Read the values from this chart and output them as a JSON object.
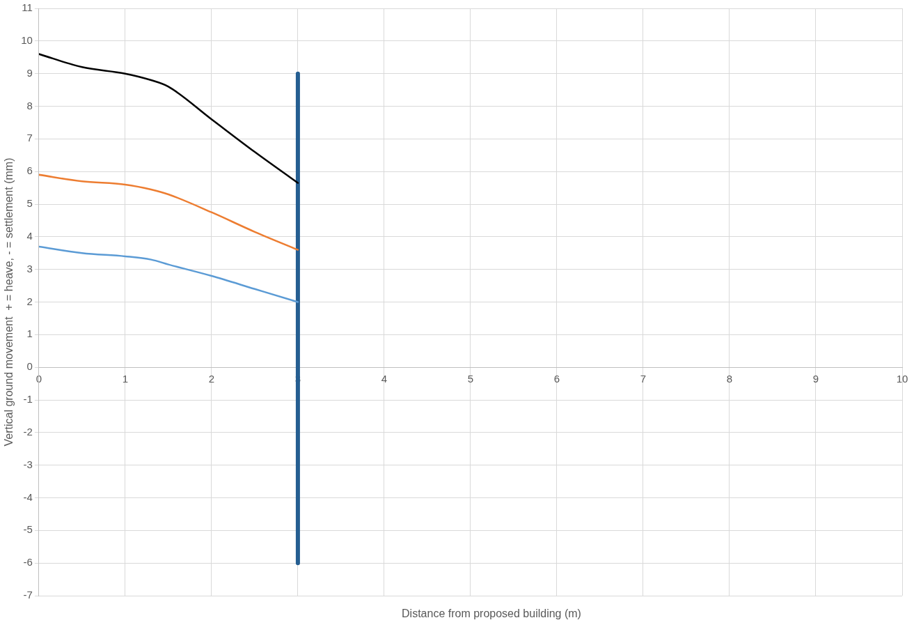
{
  "chart_data": {
    "type": "line",
    "xlabel": "Distance from proposed building (m)",
    "ylabel": "Vertical ground movement  + = heave, - = settlement (mm)",
    "xlim": [
      0,
      10
    ],
    "xticks": [
      0,
      1,
      2,
      3,
      4,
      5,
      6,
      7,
      8,
      9,
      10
    ],
    "ylim": [
      -7,
      11
    ],
    "yticks": [
      -7,
      -6,
      -5,
      -4,
      -3,
      -2,
      -1,
      0,
      1,
      2,
      3,
      4,
      5,
      6,
      7,
      8,
      9,
      10,
      11
    ],
    "grid": true,
    "legend": false,
    "marker": "none",
    "line_style": "solid",
    "series": [
      {
        "color": "#000000",
        "x": [
          0,
          0.5,
          1,
          1.3,
          1.5,
          2,
          2.5,
          3
        ],
        "values": [
          9.6,
          9.2,
          9.0,
          8.8,
          8.6,
          7.6,
          6.6,
          5.65
        ]
      },
      {
        "color": "#ed7d31",
        "x": [
          0,
          0.5,
          1,
          1.3,
          1.5,
          2,
          2.5,
          3
        ],
        "values": [
          5.9,
          5.7,
          5.6,
          5.45,
          5.3,
          4.75,
          4.15,
          3.6
        ]
      },
      {
        "color": "#5b9bd5",
        "x": [
          0,
          0.5,
          1,
          1.3,
          1.5,
          2,
          2.5,
          3
        ],
        "values": [
          3.7,
          3.5,
          3.4,
          3.3,
          3.15,
          2.8,
          2.4,
          2.0
        ]
      },
      {
        "color": "#255e91",
        "x": [
          3,
          3
        ],
        "values": [
          -6,
          9
        ]
      }
    ]
  }
}
